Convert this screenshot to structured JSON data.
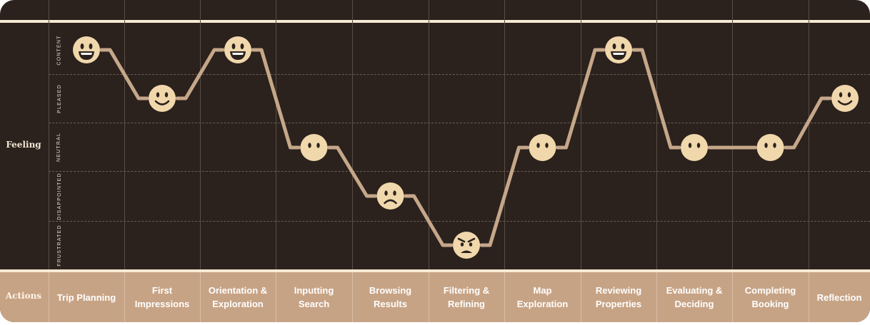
{
  "row_titles": {
    "feeling": "Feeling",
    "actions": "Actions"
  },
  "feeling_levels": [
    "CONTENT",
    "PLEASED",
    "NEUTRAL",
    "DISAPPOINTED",
    "FRUSTRATED"
  ],
  "chart_data": {
    "type": "line",
    "y_levels": [
      "CONTENT",
      "PLEASED",
      "NEUTRAL",
      "DISAPPOINTED",
      "FRUSTRATED"
    ],
    "stages": [
      {
        "action": "Trip Planning",
        "feeling": "CONTENT"
      },
      {
        "action": "First Impressions",
        "feeling": "PLEASED"
      },
      {
        "action": "Orientation & Exploration",
        "feeling": "CONTENT"
      },
      {
        "action": "Inputting Search",
        "feeling": "NEUTRAL"
      },
      {
        "action": "Browsing Results",
        "feeling": "DISAPPOINTED"
      },
      {
        "action": "Filtering & Refining",
        "feeling": "FRUSTRATED"
      },
      {
        "action": "Map Exploration",
        "feeling": "NEUTRAL"
      },
      {
        "action": "Reviewing Properties",
        "feeling": "CONTENT"
      },
      {
        "action": "Evaluating & Deciding",
        "feeling": "NEUTRAL"
      },
      {
        "action": "Completing Booking",
        "feeling": "NEUTRAL"
      },
      {
        "action": "Reflection",
        "feeling": "PLEASED"
      }
    ],
    "colors": {
      "background": "#2b211d",
      "line": "#c5a789",
      "face": "#f0d8ac",
      "band": "#c7a385",
      "rule": "#f6ead3"
    }
  },
  "actions": [
    "Trip Planning",
    "First Impressions",
    "Orientation & Exploration",
    "Inputting Search",
    "Browsing Results",
    "Filtering & Refining",
    "Map Exploration",
    "Reviewing Properties",
    "Evaluating & Deciding",
    "Completing Booking",
    "Reflection"
  ]
}
